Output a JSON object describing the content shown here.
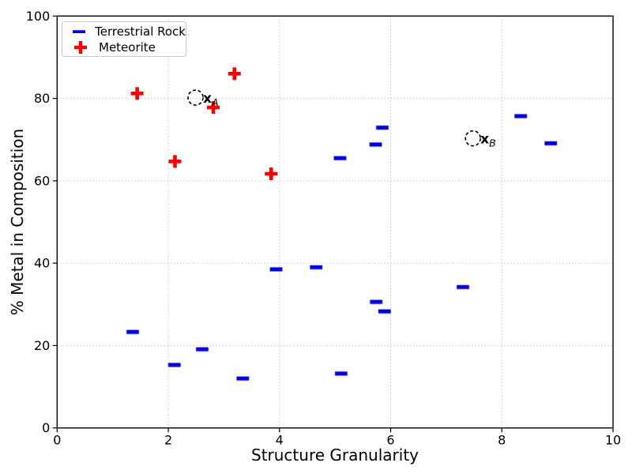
{
  "figure": {
    "background_color": "#ffffff",
    "spine_color": "#000000",
    "grid_color": "#c8c8c8",
    "annotation_color": "#000000"
  },
  "chart_data": {
    "type": "scatter",
    "title": "",
    "xlabel": "Structure Granularity",
    "ylabel": "% Metal in Composition",
    "xlim": [
      0,
      10
    ],
    "ylim": [
      0,
      100
    ],
    "xticks": [
      0,
      2,
      4,
      6,
      8,
      10
    ],
    "yticks": [
      0,
      20,
      40,
      60,
      80,
      100
    ],
    "grid": "dotted",
    "legend_position": "upper-left",
    "series": [
      {
        "name": "Terrestrial Rock",
        "marker": "dash",
        "color": "#0000ee",
        "points": [
          [
            1.36,
            23.3
          ],
          [
            2.11,
            15.3
          ],
          [
            2.61,
            19.1
          ],
          [
            3.34,
            12.0
          ],
          [
            3.94,
            38.5
          ],
          [
            4.66,
            39.0
          ],
          [
            5.09,
            65.5
          ],
          [
            5.11,
            13.2
          ],
          [
            5.73,
            68.8
          ],
          [
            5.74,
            30.6
          ],
          [
            5.85,
            72.9
          ],
          [
            5.89,
            28.3
          ],
          [
            7.3,
            34.2
          ],
          [
            8.34,
            75.7
          ],
          [
            8.88,
            69.1
          ]
        ]
      },
      {
        "name": "Meteorite",
        "marker": "plus",
        "color": "#ff0000",
        "points": [
          [
            1.44,
            81.2
          ],
          [
            2.12,
            64.7
          ],
          [
            2.81,
            77.8
          ],
          [
            3.19,
            86.0
          ],
          [
            3.85,
            61.7
          ]
        ]
      }
    ],
    "annotations": [
      {
        "label_main": "x",
        "label_sub": "A",
        "x": 2.49,
        "y": 80.2,
        "style": "dashed-circle"
      },
      {
        "label_main": "x",
        "label_sub": "B",
        "x": 7.48,
        "y": 70.3,
        "style": "dashed-circle"
      }
    ]
  }
}
